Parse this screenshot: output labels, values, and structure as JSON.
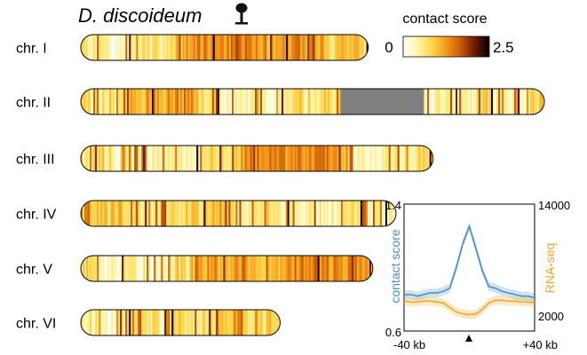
{
  "figure": {
    "title": "D. discoideum",
    "colorbar": {
      "label": "contact score",
      "min_label": "0",
      "max_label": "2.5",
      "min": 0,
      "max": 2.5,
      "colors": [
        "#ffffff",
        "#fff6a8",
        "#ffd54a",
        "#f39a1a",
        "#c85a0a",
        "#6b1a05",
        "#000000"
      ]
    },
    "gap_color": "#808080"
  },
  "chart_data": [
    {
      "type": "heatmap",
      "title": "",
      "chromosomes": [
        {
          "label": "chr. I",
          "length_fraction": 0.62,
          "gap": null,
          "seed": 11
        },
        {
          "label": "chr. II",
          "length_fraction": 1.0,
          "gap": [
            0.56,
            0.74
          ],
          "seed": 23
        },
        {
          "label": "chr. III",
          "length_fraction": 0.76,
          "gap": null,
          "seed": 37
        },
        {
          "label": "chr. IV",
          "length_fraction": 0.68,
          "gap": null,
          "seed": 41
        },
        {
          "label": "chr. V",
          "length_fraction": 0.63,
          "gap": null,
          "seed": 53
        },
        {
          "label": "chr. VI",
          "length_fraction": 0.43,
          "gap": null,
          "seed": 67
        }
      ]
    },
    {
      "type": "line",
      "title": "",
      "xlabel_left": "-40 kb",
      "xlabel_right": "+40 kb",
      "xlim": [
        -40,
        40
      ],
      "y_left": {
        "label": "contact score",
        "min_label": "0.6",
        "max_label": "1.4",
        "lim": [
          0.6,
          1.4
        ],
        "color": "#4a8fc4"
      },
      "y_right": {
        "label": "RNA-seq",
        "min_label": "2000",
        "max_label": "14000",
        "lim": [
          0,
          14000
        ],
        "color": "#f5a623"
      },
      "series": [
        {
          "axis": "left",
          "x": [
            -40,
            -36,
            -32,
            -28,
            -24,
            -20,
            -16,
            -12,
            -8,
            -4,
            0,
            4,
            8,
            12,
            16,
            20,
            24,
            28,
            32,
            36,
            40
          ],
          "values": [
            0.83,
            0.83,
            0.82,
            0.83,
            0.84,
            0.84,
            0.85,
            0.87,
            1.0,
            1.15,
            1.26,
            1.12,
            0.98,
            0.88,
            0.87,
            0.85,
            0.84,
            0.83,
            0.82,
            0.82,
            0.81
          ]
        },
        {
          "axis": "right",
          "x": [
            -40,
            -36,
            -32,
            -28,
            -24,
            -20,
            -16,
            -12,
            -8,
            -4,
            0,
            4,
            8,
            12,
            16,
            20,
            24,
            28,
            32,
            36,
            40
          ],
          "values": [
            3300,
            3200,
            3200,
            3300,
            3300,
            3200,
            3100,
            2600,
            2100,
            1900,
            1800,
            1900,
            2400,
            3100,
            3400,
            3400,
            3300,
            3300,
            3200,
            3200,
            3100
          ]
        }
      ]
    }
  ]
}
